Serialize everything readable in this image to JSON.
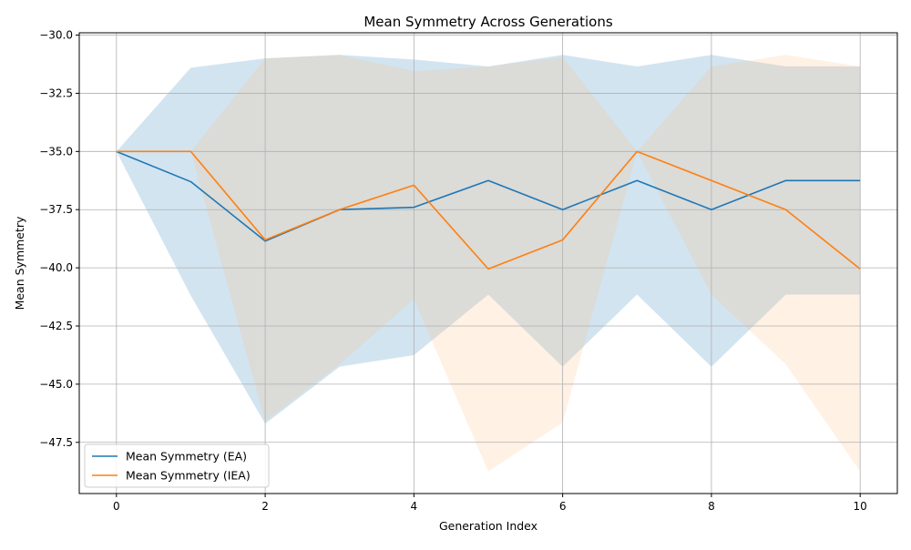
{
  "chart_data": {
    "type": "line",
    "title": "Mean Symmetry Across Generations",
    "xlabel": "Generation Index",
    "ylabel": "Mean Symmetry",
    "xlim": [
      -0.5,
      10.5
    ],
    "ylim": [
      -49.7,
      -29.9
    ],
    "xticks": [
      0,
      2,
      4,
      6,
      8,
      10
    ],
    "xtick_labels": [
      "0",
      "2",
      "4",
      "6",
      "8",
      "10"
    ],
    "yticks": [
      -30.0,
      -32.5,
      -35.0,
      -37.5,
      -40.0,
      -42.5,
      -45.0,
      -47.5
    ],
    "ytick_labels": [
      "−30.0",
      "−32.5",
      "−35.0",
      "−37.5",
      "−40.0",
      "−42.5",
      "−45.0",
      "−47.5"
    ],
    "grid": true,
    "legend_position": "lower-left",
    "x": [
      0,
      1,
      2,
      3,
      4,
      5,
      6,
      7,
      8,
      9,
      10
    ],
    "series": [
      {
        "name": "Mean Symmetry (EA)",
        "color": "#1f77b4",
        "band_color": "#1f77b4",
        "values": [
          -35.0,
          -36.3,
          -38.85,
          -37.5,
          -37.4,
          -36.25,
          -37.5,
          -36.25,
          -37.5,
          -36.25,
          -36.25
        ],
        "upper": [
          -35.0,
          -31.4,
          -31.0,
          -30.85,
          -31.05,
          -31.35,
          -30.85,
          -31.35,
          -30.85,
          -31.35,
          -31.35
        ],
        "lower": [
          -35.0,
          -41.2,
          -46.7,
          -44.25,
          -43.75,
          -41.15,
          -44.25,
          -41.15,
          -44.25,
          -41.15,
          -41.15
        ]
      },
      {
        "name": "Mean Symmetry (IEA)",
        "color": "#ff7f0e",
        "band_color": "#ffbb78",
        "values": [
          -35.0,
          -35.0,
          -38.8,
          -37.5,
          -36.45,
          -40.05,
          -38.8,
          -35.0,
          -36.25,
          -37.5,
          -40.05
        ],
        "upper": [
          -35.0,
          -35.0,
          -31.0,
          -30.85,
          -31.55,
          -31.35,
          -30.95,
          -35.0,
          -31.35,
          -30.85,
          -31.35
        ],
        "lower": [
          -35.0,
          -35.0,
          -46.6,
          -44.15,
          -41.35,
          -48.75,
          -46.65,
          -35.0,
          -41.15,
          -44.15,
          -48.75
        ]
      }
    ]
  }
}
